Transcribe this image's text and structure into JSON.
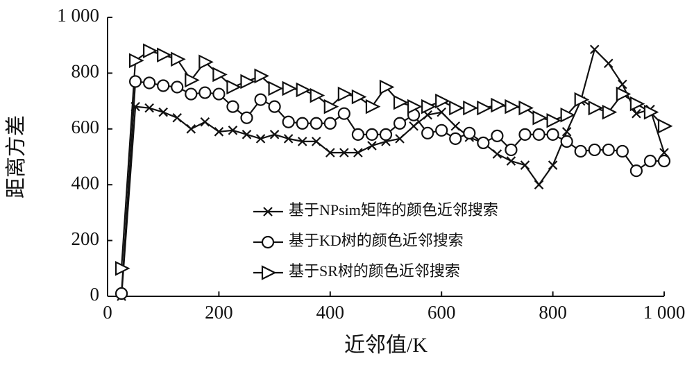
{
  "chart_data": {
    "type": "line",
    "x_label": "近邻值/K",
    "y_label": "距离方差",
    "x": [
      25,
      50,
      75,
      100,
      125,
      150,
      175,
      200,
      225,
      250,
      275,
      300,
      325,
      350,
      375,
      400,
      425,
      450,
      475,
      500,
      525,
      550,
      575,
      600,
      625,
      650,
      675,
      700,
      725,
      750,
      775,
      800,
      825,
      850,
      875,
      900,
      925,
      950,
      975,
      1000
    ],
    "series": [
      {
        "name": "基于NPsim矩阵的颜色近邻搜索",
        "color": "#111111",
        "marker": "x",
        "values": [
          0,
          680,
          675,
          660,
          640,
          600,
          625,
          590,
          595,
          580,
          565,
          580,
          565,
          555,
          555,
          515,
          515,
          515,
          540,
          555,
          565,
          610,
          650,
          660,
          610,
          570,
          550,
          510,
          485,
          470,
          400,
          470,
          590,
          700,
          885,
          835,
          760,
          655,
          670,
          515
        ]
      },
      {
        "name": "基于KD树的颜色近邻搜索",
        "color": "#111111",
        "marker": "circle",
        "values": [
          10,
          770,
          765,
          755,
          750,
          725,
          730,
          725,
          680,
          640,
          705,
          680,
          625,
          620,
          620,
          620,
          655,
          580,
          580,
          580,
          620,
          650,
          585,
          595,
          565,
          585,
          550,
          575,
          525,
          580,
          580,
          580,
          555,
          520,
          525,
          525,
          520,
          450,
          485,
          485
        ]
      },
      {
        "name": "基于SR树的颜色近邻搜索",
        "color": "#111111",
        "marker": "triangle-right",
        "values": [
          100,
          845,
          880,
          865,
          850,
          775,
          840,
          795,
          750,
          770,
          790,
          745,
          745,
          740,
          720,
          680,
          725,
          715,
          680,
          750,
          695,
          680,
          680,
          700,
          675,
          675,
          675,
          685,
          680,
          675,
          640,
          630,
          650,
          705,
          675,
          660,
          725,
          690,
          660,
          610
        ]
      }
    ],
    "xlim": [
      0,
      1000
    ],
    "xticks": [
      0,
      200,
      400,
      600,
      800,
      {
        "value": 1000,
        "label": "1 000"
      }
    ],
    "ylim": [
      0,
      1000
    ],
    "yticks": [
      0,
      200,
      400,
      600,
      800,
      {
        "value": 1000,
        "label": "1 000"
      }
    ]
  }
}
